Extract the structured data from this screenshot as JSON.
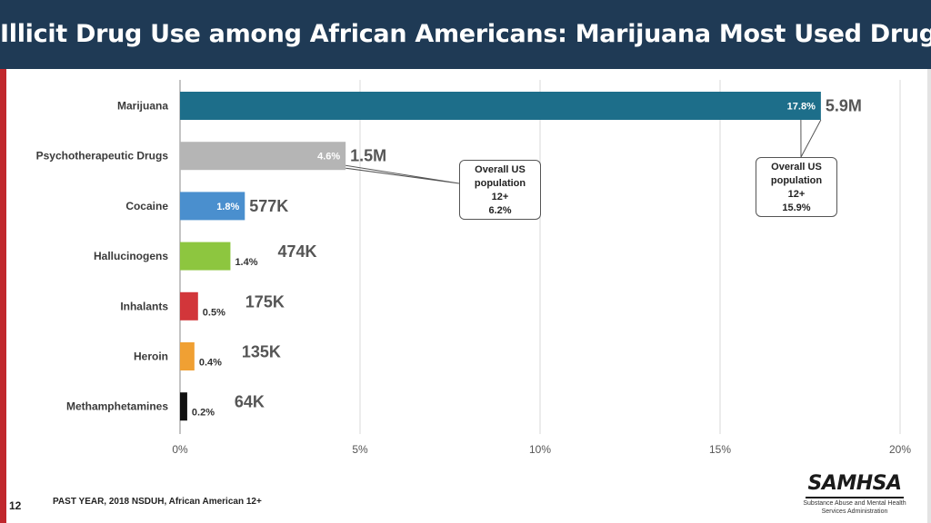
{
  "title": "Illicit Drug Use among African Americans: Marijuana Most Used Drug",
  "chart_data": {
    "type": "bar",
    "orientation": "horizontal",
    "categories": [
      "Marijuana",
      "Psychotherapeutic Drugs",
      "Cocaine",
      "Hallucinogens",
      "Inhalants",
      "Heroin",
      "Methamphetamines"
    ],
    "values": [
      17.8,
      4.6,
      1.8,
      1.4,
      0.5,
      0.4,
      0.2
    ],
    "value_labels": [
      "17.8%",
      "4.6%",
      "1.8%",
      "1.4%",
      "0.5%",
      "0.4%",
      "0.2%"
    ],
    "counts": [
      "5.9M",
      "1.5M",
      "577K",
      "474K",
      "175K",
      "135K",
      "64K"
    ],
    "colors": [
      "#1d6e8a",
      "#b5b5b5",
      "#4a8fce",
      "#8dc63f",
      "#d2363a",
      "#f0a033",
      "#111111"
    ],
    "xlim": [
      0,
      20
    ],
    "x_ticks": [
      "0%",
      "5%",
      "10%",
      "15%",
      "20%"
    ],
    "grid": true,
    "callouts": [
      {
        "lines": [
          "Overall US",
          "population",
          "12+",
          "6.2%"
        ],
        "points_to": "Psychotherapeutic Drugs"
      },
      {
        "lines": [
          "Overall US",
          "population",
          "12+",
          "15.9%"
        ],
        "points_to": "Marijuana"
      }
    ]
  },
  "footer": {
    "page_number": "12",
    "source": "PAST YEAR, 2018 NSDUH, African American 12+"
  },
  "logo": {
    "name": "SAMHSA",
    "subtitle_lines": [
      "Substance Abuse and Mental Health",
      "Services Administration"
    ]
  }
}
